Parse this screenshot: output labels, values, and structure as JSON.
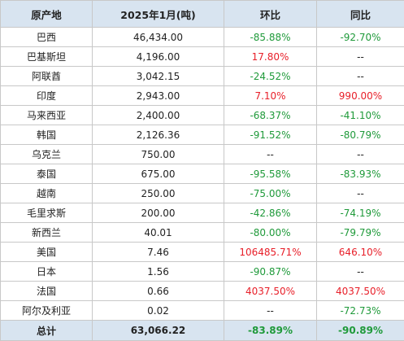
{
  "table": {
    "headers": [
      "原产地",
      "2025年1月(吨)",
      "环比",
      "同比"
    ],
    "rows": [
      {
        "origin": "巴西",
        "volume": "46,434.00",
        "mom": "-85.88%",
        "yoy": "-92.70%"
      },
      {
        "origin": "巴基斯坦",
        "volume": "4,196.00",
        "mom": "17.80%",
        "yoy": "--"
      },
      {
        "origin": "阿联酋",
        "volume": "3,042.15",
        "mom": "-24.52%",
        "yoy": "--"
      },
      {
        "origin": "印度",
        "volume": "2,943.00",
        "mom": "7.10%",
        "yoy": "990.00%"
      },
      {
        "origin": "马来西亚",
        "volume": "2,400.00",
        "mom": "-68.37%",
        "yoy": "-41.10%"
      },
      {
        "origin": "韩国",
        "volume": "2,126.36",
        "mom": "-91.52%",
        "yoy": "-80.79%"
      },
      {
        "origin": "乌克兰",
        "volume": "750.00",
        "mom": "--",
        "yoy": "--"
      },
      {
        "origin": "泰国",
        "volume": "675.00",
        "mom": "-95.58%",
        "yoy": "-83.93%"
      },
      {
        "origin": "越南",
        "volume": "250.00",
        "mom": "-75.00%",
        "yoy": "--"
      },
      {
        "origin": "毛里求斯",
        "volume": "200.00",
        "mom": "-42.86%",
        "yoy": "-74.19%"
      },
      {
        "origin": "新西兰",
        "volume": "40.01",
        "mom": "-80.00%",
        "yoy": "-79.79%"
      },
      {
        "origin": "美国",
        "volume": "7.46",
        "mom": "106485.71%",
        "yoy": "646.10%"
      },
      {
        "origin": "日本",
        "volume": "1.56",
        "mom": "-90.87%",
        "yoy": "--"
      },
      {
        "origin": "法国",
        "volume": "0.66",
        "mom": "4037.50%",
        "yoy": "4037.50%"
      },
      {
        "origin": "阿尔及利亚",
        "volume": "0.02",
        "mom": "--",
        "yoy": "-72.73%"
      }
    ],
    "total": {
      "origin": "总计",
      "volume": "63,066.22",
      "mom": "-83.89%",
      "yoy": "-90.89%"
    }
  },
  "colors": {
    "header_bg": "#d8e4f0",
    "increase": "#e8202a",
    "decrease": "#1f9a3a",
    "border": "#c8c8c8"
  }
}
